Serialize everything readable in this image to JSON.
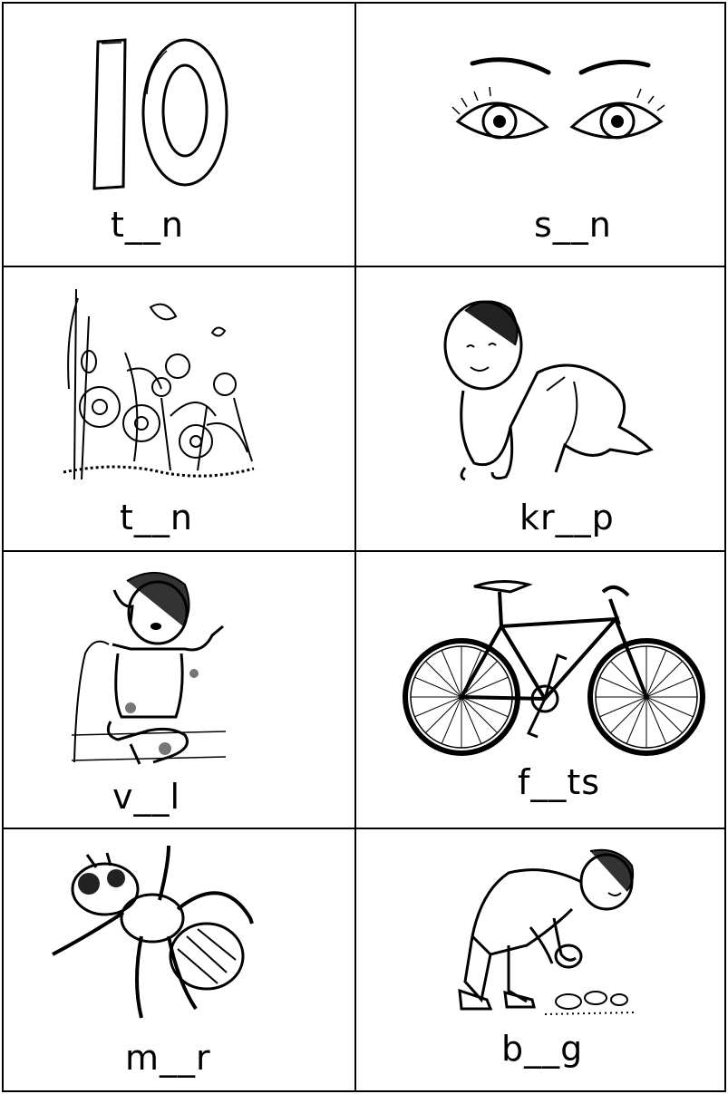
{
  "worksheet": {
    "cards": [
      {
        "word": "t__n",
        "icon": "number-ten-icon"
      },
      {
        "word": "s__n",
        "icon": "eyes-icon"
      },
      {
        "word": "t__n",
        "icon": "garden-flowers-icon"
      },
      {
        "word": "kr__p",
        "icon": "crawling-baby-icon"
      },
      {
        "word": "v__l",
        "icon": "girl-on-phone-icon"
      },
      {
        "word": "f__ts",
        "icon": "bicycle-icon"
      },
      {
        "word": "m__r",
        "icon": "ant-icon"
      },
      {
        "word": "b__g",
        "icon": "boy-picking-up-stone-icon"
      }
    ]
  }
}
